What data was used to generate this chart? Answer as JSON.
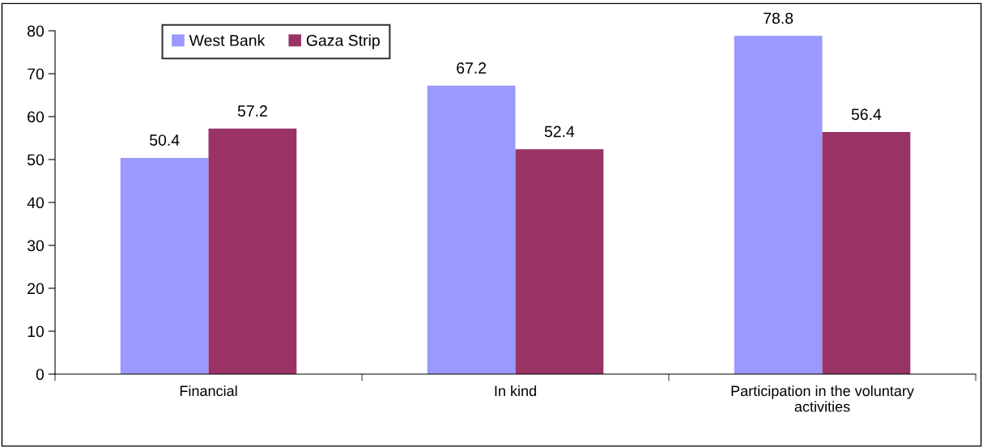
{
  "chart_data": {
    "type": "bar",
    "categories": [
      "Financial",
      "In kind",
      "Participation in the voluntary\nactivities"
    ],
    "series": [
      {
        "name": "West Bank",
        "color": "#9999ff",
        "values": [
          50.4,
          67.2,
          78.8
        ]
      },
      {
        "name": "Gaza Strip",
        "color": "#993366",
        "values": [
          57.2,
          52.4,
          56.4
        ]
      }
    ],
    "ylim": [
      0,
      80
    ],
    "yticks": [
      0,
      10,
      20,
      30,
      40,
      50,
      60,
      70,
      80
    ],
    "data_labels": true,
    "legend": "top left",
    "grid": false
  }
}
